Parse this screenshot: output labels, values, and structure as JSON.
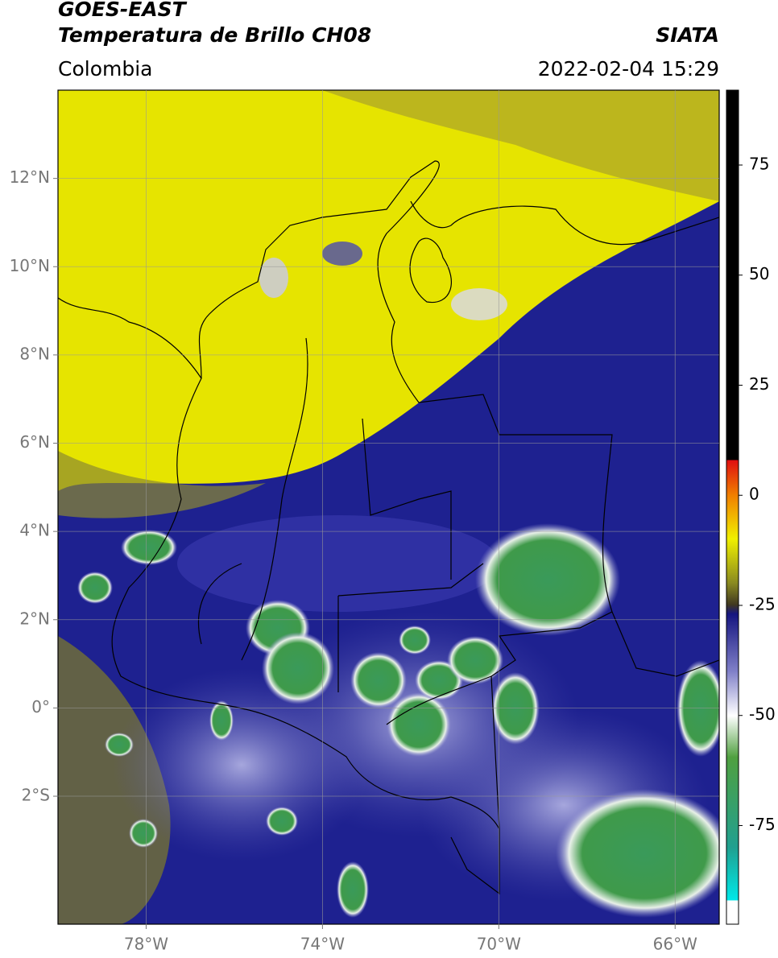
{
  "header": {
    "title": "GOES-EAST",
    "subtitle": "Temperatura de Brillo CH08",
    "region": "Colombia",
    "source": "SIATA",
    "datetime": "2022-02-04 15:29"
  },
  "map": {
    "xlim": [
      -80,
      -65
    ],
    "ylim": [
      -4.9,
      14
    ],
    "xticks": [
      {
        "value": -78,
        "label": "78°W"
      },
      {
        "value": -74,
        "label": "74°W"
      },
      {
        "value": -70,
        "label": "70°W"
      },
      {
        "value": -66,
        "label": "66°W"
      }
    ],
    "yticks": [
      {
        "value": 12,
        "label": "12°N"
      },
      {
        "value": 10,
        "label": "10°N"
      },
      {
        "value": 8,
        "label": "8°N"
      },
      {
        "value": 6,
        "label": "6°N"
      },
      {
        "value": 4,
        "label": "4°N"
      },
      {
        "value": 2,
        "label": "2°N"
      },
      {
        "value": 0,
        "label": "0°"
      },
      {
        "value": -2,
        "label": "2°S"
      }
    ],
    "grid": true
  },
  "colorbar": {
    "lim": [
      -97.4,
      92
    ],
    "ticks": [
      75,
      50,
      25,
      0,
      -25,
      -50,
      -75
    ]
  }
}
